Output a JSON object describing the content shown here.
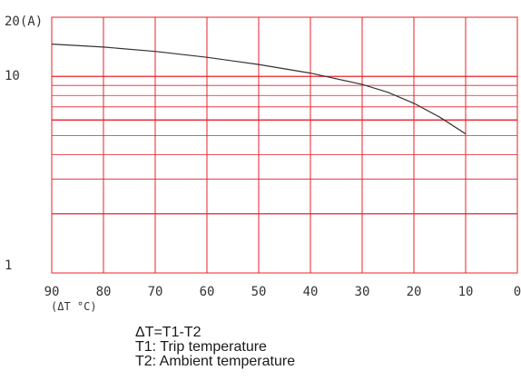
{
  "chart_data": {
    "type": "line",
    "y_scale": "log",
    "xlim": [
      90,
      0
    ],
    "ylim": [
      1,
      20
    ],
    "x_ticks": [
      "90",
      "80",
      "70",
      "60",
      "50",
      "40",
      "30",
      "20",
      "10",
      "0"
    ],
    "y_ticks": [
      {
        "value": 20,
        "label": "20(A)"
      },
      {
        "value": 10,
        "label": "10"
      },
      {
        "value": 1,
        "label": "1"
      }
    ],
    "xlabel": "(ΔT °C)",
    "series": [
      {
        "x": [
          90,
          80,
          70,
          60,
          50,
          40,
          30,
          25,
          20,
          15,
          10
        ],
        "y": [
          14.6,
          14.1,
          13.4,
          12.5,
          11.5,
          10.4,
          9.1,
          8.3,
          7.3,
          6.2,
          5.1
        ]
      }
    ],
    "grid": true,
    "colors": {
      "grid": "#e8202a",
      "curve": "#333333",
      "text": "#333333"
    }
  },
  "notes": {
    "line1": "ΔT=T1-T2",
    "line2": "T1: Trip temperature",
    "line3": "T2: Ambient temperature"
  }
}
